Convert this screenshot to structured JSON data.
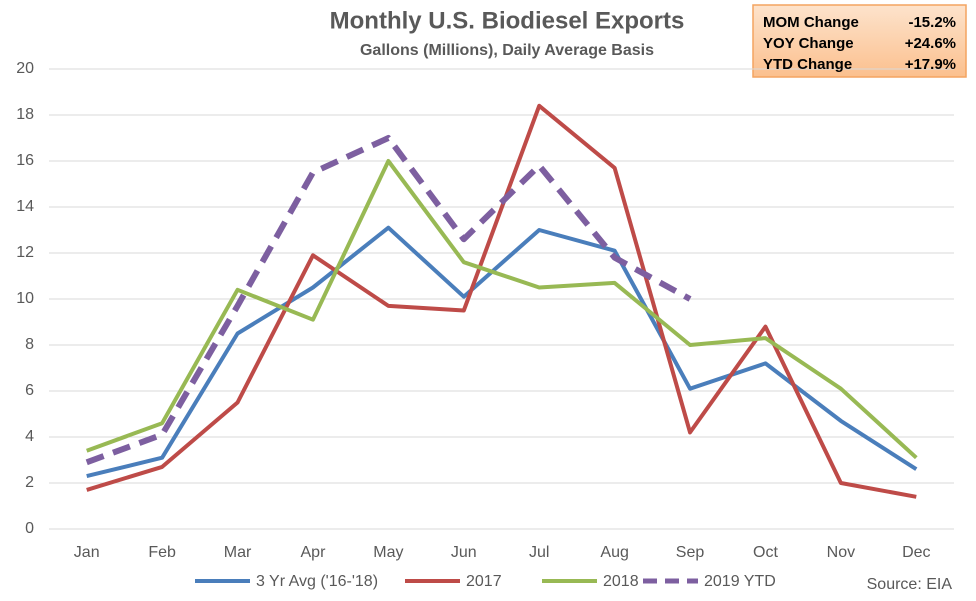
{
  "chart_data": {
    "type": "line",
    "title": "Monthly U.S. Biodiesel Exports",
    "subtitle": "Gallons (Millions), Daily Average Basis",
    "categories": [
      "Jan",
      "Feb",
      "Mar",
      "Apr",
      "May",
      "Jun",
      "Jul",
      "Aug",
      "Sep",
      "Oct",
      "Nov",
      "Dec"
    ],
    "series": [
      {
        "name": "3 Yr Avg ('16-'18)",
        "color": "#4a7ebb",
        "line_style": "solid",
        "values": [
          2.3,
          3.1,
          8.5,
          10.5,
          13.1,
          10.1,
          13.0,
          12.1,
          6.1,
          7.2,
          4.7,
          2.6
        ]
      },
      {
        "name": "2017",
        "color": "#be4b48",
        "line_style": "solid",
        "values": [
          1.7,
          2.7,
          5.5,
          11.9,
          9.7,
          9.5,
          18.4,
          15.7,
          4.2,
          8.8,
          2.0,
          1.4
        ]
      },
      {
        "name": "2018",
        "color": "#98b954",
        "line_style": "solid",
        "values": [
          3.4,
          4.6,
          10.4,
          9.1,
          16.0,
          11.6,
          10.5,
          10.7,
          8.0,
          8.3,
          6.1,
          3.1
        ]
      },
      {
        "name": "2019 YTD",
        "color": "#7d5fa0",
        "line_style": "dashed",
        "values": [
          2.9,
          4.1,
          9.7,
          15.5,
          17.0,
          12.6,
          15.8,
          11.8,
          10.0,
          null,
          null,
          null
        ]
      }
    ],
    "ylim": [
      0,
      20
    ],
    "yticks": [
      0,
      2,
      4,
      6,
      8,
      10,
      12,
      14,
      16,
      18,
      20
    ],
    "grid": true,
    "legend": "bottom",
    "info_box": [
      {
        "label": "MOM Change",
        "value": "-15.2%"
      },
      {
        "label": "YOY Change",
        "value": "+24.6%"
      },
      {
        "label": "YTD Change",
        "value": "+17.9%"
      }
    ],
    "source": "Source: EIA"
  }
}
